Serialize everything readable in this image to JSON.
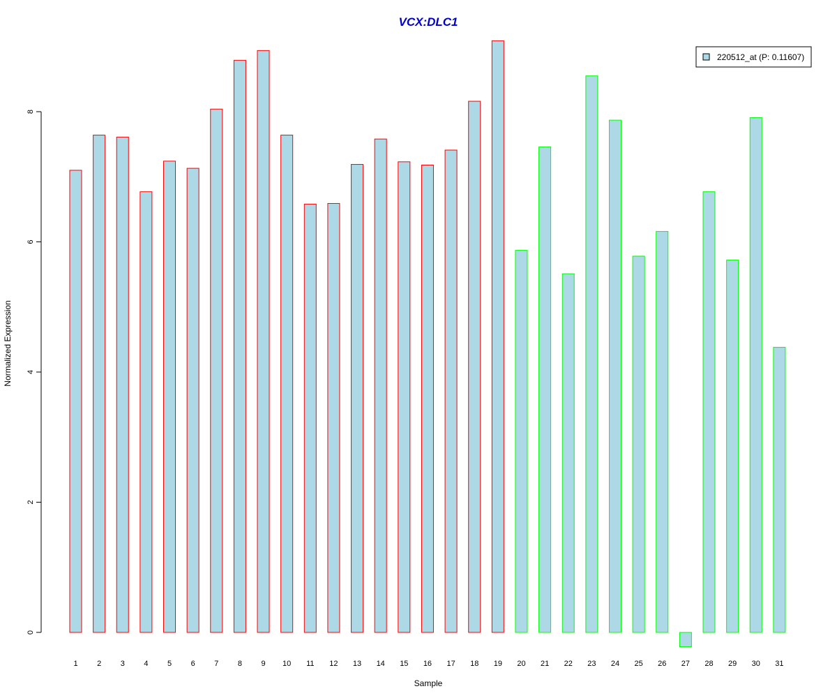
{
  "chart_data": {
    "type": "bar",
    "title": "VCX:DLC1",
    "xlabel": "Sample",
    "ylabel": "Normalized Expression",
    "categories": [
      "1",
      "2",
      "3",
      "4",
      "5",
      "6",
      "7",
      "8",
      "9",
      "10",
      "11",
      "12",
      "13",
      "14",
      "15",
      "16",
      "17",
      "18",
      "19",
      "20",
      "21",
      "22",
      "23",
      "24",
      "25",
      "26",
      "27",
      "28",
      "29",
      "30",
      "31"
    ],
    "values": [
      7.1,
      7.64,
      7.61,
      6.77,
      7.24,
      7.13,
      8.04,
      8.79,
      8.94,
      7.64,
      6.58,
      6.59,
      7.19,
      7.58,
      7.23,
      7.18,
      7.41,
      8.16,
      9.09,
      5.87,
      7.46,
      5.51,
      8.55,
      7.87,
      5.78,
      6.16,
      -0.22,
      6.77,
      5.72,
      7.91,
      4.38
    ],
    "groups": [
      "a",
      "a",
      "a",
      "a",
      "a",
      "a",
      "a",
      "a",
      "a",
      "a",
      "a",
      "a",
      "a",
      "a",
      "a",
      "a",
      "a",
      "a",
      "a",
      "b",
      "b",
      "b",
      "b",
      "b",
      "b",
      "b",
      "b",
      "b",
      "b",
      "b",
      "b"
    ],
    "yticks": [
      0,
      2,
      4,
      6,
      8
    ],
    "ylim": [
      -0.35,
      9.4
    ],
    "legend": {
      "label": "220512_at (P: 0.11607)",
      "position": "top-right"
    },
    "grid": false,
    "colors": {
      "fill": "#add8e6",
      "border_a": "#ff0000",
      "border_b": "#00ff00",
      "title": "#0000cc",
      "axis": "#000000"
    }
  }
}
